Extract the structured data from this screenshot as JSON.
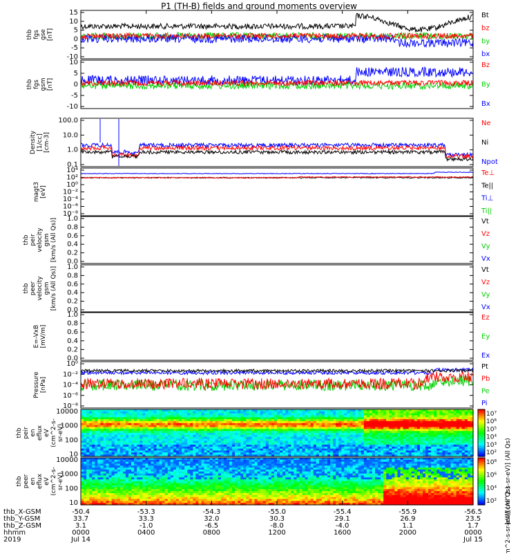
{
  "title": "P1 (TH-B) fields and ground moments overview",
  "colors": {
    "black": "#000000",
    "red": "#ff0000",
    "green": "#00d000",
    "blue": "#0000ff"
  },
  "panels": [
    {
      "id": "fgs",
      "ylabel": [
        "thb",
        "fgs",
        "gse",
        "[nT]"
      ],
      "yticks": [
        "15",
        "10",
        "5",
        "0",
        "-5",
        "-10"
      ],
      "legend": [
        {
          "text": "Bt",
          "color": "#000000"
        },
        {
          "text": "bz",
          "color": "#ff0000"
        },
        {
          "text": "by",
          "color": "#00d000"
        },
        {
          "text": "bx",
          "color": "#0000ff"
        }
      ]
    },
    {
      "id": "fgs_gsm",
      "ylabel": [
        "thb",
        "fgs",
        "gsm",
        "[nT]"
      ],
      "yticks": [
        "10",
        "5",
        "0",
        "-5",
        "-10"
      ],
      "legend": [
        {
          "text": "Bz",
          "color": "#ff0000"
        },
        {
          "text": "By",
          "color": "#00d000"
        },
        {
          "text": "Bx",
          "color": "#0000ff"
        }
      ]
    },
    {
      "id": "density",
      "ylabel": [
        "Density",
        "[1/cc]",
        "[cm-3]"
      ],
      "yticks": [
        "100.0",
        "10.0",
        "1.0",
        "0.1"
      ],
      "legend": [
        {
          "text": "Ne",
          "color": "#ff0000"
        },
        {
          "text": "Ni",
          "color": "#000000"
        },
        {
          "text": "Npot",
          "color": "#0000ff"
        }
      ]
    },
    {
      "id": "magt3",
      "ylabel": [
        "magt3",
        "[eV]"
      ],
      "yticks": [
        "10⁴",
        "10²",
        "10⁰",
        "10⁻²",
        "10⁻⁴",
        "10⁻⁶",
        "10⁻⁸"
      ],
      "legend": [
        {
          "text": "Te⊥",
          "color": "#ff0000"
        },
        {
          "text": "Te||",
          "color": "#000000"
        },
        {
          "text": "Ti⊥",
          "color": "#0000ff"
        },
        {
          "text": "Ti||",
          "color": "#00d000"
        }
      ]
    },
    {
      "id": "peir_v",
      "ylabel": [
        "thb",
        "peir",
        "velocity",
        "gsm",
        "[km/s (All Qs)]"
      ],
      "yticks": [
        "1.0",
        "0.8",
        "0.6",
        "0.4",
        "0.2",
        "0.0"
      ],
      "legend": [
        {
          "text": "Vt",
          "color": "#000000"
        },
        {
          "text": "Vz",
          "color": "#ff0000"
        },
        {
          "text": "Vy",
          "color": "#00d000"
        },
        {
          "text": "Vx",
          "color": "#0000ff"
        }
      ]
    },
    {
      "id": "peer_v",
      "ylabel": [
        "thb",
        "peer",
        "velocity",
        "gsm",
        "[km/s (All Qs)]"
      ],
      "yticks": [
        "1.0",
        "0.8",
        "0.6",
        "0.4",
        "0.2",
        "0.0"
      ],
      "legend": [
        {
          "text": "Vt",
          "color": "#000000"
        },
        {
          "text": "Vz",
          "color": "#ff0000"
        },
        {
          "text": "Vy",
          "color": "#00d000"
        },
        {
          "text": "Vx",
          "color": "#0000ff"
        }
      ]
    },
    {
      "id": "efield",
      "ylabel": [
        "E=-VxB",
        "[mV/m]"
      ],
      "yticks": [
        "1.0",
        "0.8",
        "0.6",
        "0.4",
        "0.2",
        "0.0"
      ],
      "legend": [
        {
          "text": "Ez",
          "color": "#ff0000"
        },
        {
          "text": "Ey",
          "color": "#00d000"
        },
        {
          "text": "Ex",
          "color": "#0000ff"
        }
      ]
    },
    {
      "id": "pressure",
      "ylabel": [
        "Pressure",
        "[nPa]"
      ],
      "yticks": [
        "10⁰",
        "10⁻²",
        "10⁻⁴",
        "10⁻⁶",
        "10⁻⁸"
      ],
      "legend": [
        {
          "text": "Pt",
          "color": "#000000"
        },
        {
          "text": "Pb",
          "color": "#ff0000"
        },
        {
          "text": "Pe",
          "color": "#00d000"
        },
        {
          "text": "Pi",
          "color": "#0000ff"
        }
      ]
    },
    {
      "id": "peir_en",
      "ylabel": [
        "thb",
        "peir",
        "en",
        "eflux",
        "eV",
        "(cm^2-s-",
        "sr-eV)"
      ],
      "yticks": [
        "10000",
        "1000",
        "100",
        "10"
      ],
      "colorbar_ticks": [
        "10⁷",
        "10⁶",
        "10⁵",
        "10⁴",
        "10³",
        "10²"
      ],
      "colorbar_label": "[eV/(cm^2-s-sr-eV)] (All Qs)"
    },
    {
      "id": "peer_en",
      "ylabel": [
        "thb",
        "peer",
        "en",
        "eflux",
        "eV",
        "(cm^2-s-",
        "sr-eV)"
      ],
      "yticks": [
        "10000",
        "1000",
        "100",
        "10"
      ],
      "colorbar_ticks": [
        "10⁸",
        "10⁶",
        "10⁴",
        "10²"
      ],
      "colorbar_label": "[eV/(cm^2-s-sr-eV)] (All Qs)"
    }
  ],
  "xaxis": {
    "row_labels": [
      "thb_X-GSM",
      "thb_Y-GSM",
      "thb_Z-GSM",
      "hhmm",
      "2019"
    ],
    "ticks": [
      {
        "x": "-50.4",
        "y": "33.7",
        "z": "3.1",
        "hhmm": "0000",
        "date": "Jul 14"
      },
      {
        "x": "-53.3",
        "y": "33.3",
        "z": "-1.0",
        "hhmm": "0400",
        "date": ""
      },
      {
        "x": "-54.3",
        "y": "32.0",
        "z": "-6.5",
        "hhmm": "0800",
        "date": ""
      },
      {
        "x": "-55.0",
        "y": "30.3",
        "z": "-8.0",
        "hhmm": "1200",
        "date": ""
      },
      {
        "x": "-55.4",
        "y": "29.1",
        "z": "-4.0",
        "hhmm": "1600",
        "date": ""
      },
      {
        "x": "-55.9",
        "y": "26.9",
        "z": "1.1",
        "hhmm": "2000",
        "date": ""
      },
      {
        "x": "-56.5",
        "y": "23.5",
        "z": "1.7",
        "hhmm": "0000",
        "date": "Jul 15"
      }
    ]
  },
  "chart_data": {
    "type": "line",
    "title": "P1 (TH-B) fields and ground moments overview",
    "x_hours": [
      0,
      4,
      8,
      12,
      16,
      20,
      24
    ],
    "series": [
      {
        "name": "Bt",
        "panel": "fgs",
        "values": [
          7,
          6,
          7,
          6,
          5,
          9,
          10
        ]
      },
      {
        "name": "bz",
        "panel": "fgs",
        "values": [
          1,
          0,
          -1,
          0,
          1,
          0,
          2
        ]
      },
      {
        "name": "by",
        "panel": "fgs",
        "values": [
          0,
          1,
          2,
          2,
          2,
          1,
          2
        ]
      },
      {
        "name": "bx",
        "panel": "fgs",
        "values": [
          -4,
          -2,
          -3,
          -2,
          -3,
          -6,
          0
        ]
      },
      {
        "name": "Bz",
        "panel": "fgs_gsm",
        "values": [
          -2,
          2,
          2,
          2,
          2,
          0,
          1
        ]
      },
      {
        "name": "By",
        "panel": "fgs_gsm",
        "values": [
          2,
          0,
          1,
          0,
          0,
          2,
          0
        ]
      },
      {
        "name": "Bx",
        "panel": "fgs_gsm",
        "values": [
          -4,
          2,
          3,
          3,
          3,
          6,
          0
        ]
      },
      {
        "name": "Ne",
        "panel": "density",
        "values": [
          1.0,
          3.0,
          2.5,
          2.5,
          3.0,
          2.0,
          0.3
        ]
      },
      {
        "name": "Ni",
        "panel": "density",
        "values": [
          1.2,
          1.5,
          1.2,
          1.2,
          1.3,
          1.2,
          0.2
        ]
      },
      {
        "name": "Npot",
        "panel": "density",
        "values": [
          2.0,
          4.0,
          4.0,
          4.0,
          4.5,
          3.0,
          0.3
        ]
      },
      {
        "name": "Pt",
        "panel": "pressure",
        "values": [
          0.06,
          0.04,
          0.05,
          0.04,
          0.04,
          0.04,
          0.04
        ]
      },
      {
        "name": "Pb",
        "panel": "pressure",
        "values": [
          0.01,
          0.005,
          0.004,
          0.005,
          0.004,
          0.005,
          0.02
        ]
      }
    ]
  }
}
